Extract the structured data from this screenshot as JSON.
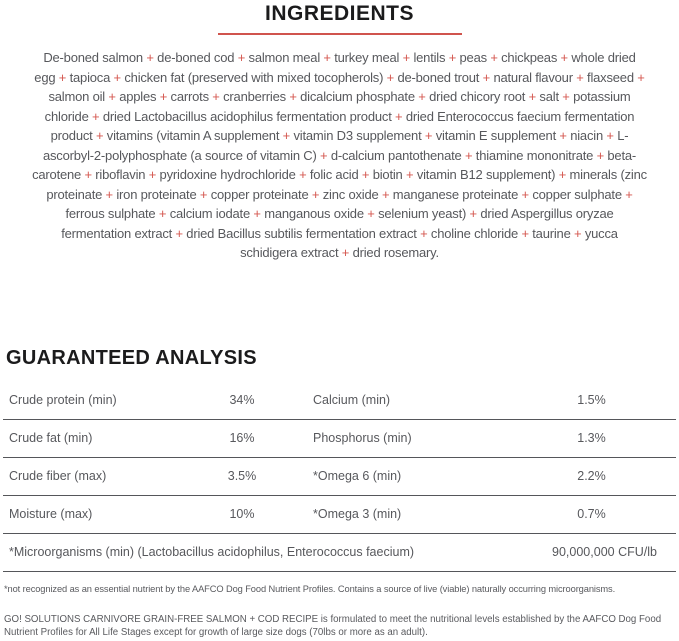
{
  "colors": {
    "accent_red": "#d4564e",
    "body_text": "#57585c",
    "heading_text": "#1b1b1c",
    "table_rule": "#55565a"
  },
  "ingredients": {
    "title": "INGREDIENTS",
    "separator": "+",
    "items": [
      "De-boned salmon",
      "de-boned cod",
      "salmon meal",
      "turkey meal",
      "lentils",
      "peas",
      "chickpeas",
      "whole dried egg",
      "tapioca",
      "chicken fat (preserved with mixed tocopherols)",
      "de-boned trout",
      "natural flavour",
      "flaxseed",
      "salmon oil",
      "apples",
      "carrots",
      "cranberries",
      "dicalcium phosphate",
      "dried chicory root",
      "salt",
      "potassium chloride",
      "dried Lactobacillus acidophilus fermentation product",
      "dried Enterococcus faecium fermentation product",
      "vitamins (vitamin A supplement",
      "vitamin D3 supplement",
      "vitamin E supplement",
      "niacin",
      "L-ascorbyl-2-polyphosphate (a source of vitamin C)",
      "d-calcium pantothenate",
      "thiamine mononitrate",
      "beta-carotene",
      "riboflavin",
      "pyridoxine hydrochloride",
      "folic acid",
      "biotin",
      "vitamin B12 supplement)",
      "minerals (zinc proteinate",
      "iron proteinate",
      "copper proteinate",
      "zinc oxide",
      "manganese proteinate",
      "copper sulphate",
      "ferrous sulphate",
      "calcium iodate",
      "manganous oxide",
      "selenium yeast)",
      "dried Aspergillus oryzae fermentation extract",
      "dried Bacillus subtilis fermentation extract",
      "choline chloride",
      "taurine",
      "yucca schidigera extract",
      "dried rosemary."
    ]
  },
  "guaranteed_analysis": {
    "title": "GUARANTEED ANALYSIS",
    "rows": [
      {
        "label1": "Crude protein (min)",
        "value1": "34%",
        "label2": "Calcium (min)",
        "value2": "1.5%"
      },
      {
        "label1": "Crude fat (min)",
        "value1": "16%",
        "label2": "Phosphorus (min)",
        "value2": "1.3%"
      },
      {
        "label1": "Crude fiber (max)",
        "value1": "3.5%",
        "label2": "*Omega 6 (min)",
        "value2": "2.2%"
      },
      {
        "label1": "Moisture (max)",
        "value1": "10%",
        "label2": "*Omega 3 (min)",
        "value2": "0.7%"
      }
    ],
    "full_row": {
      "label": "*Microorganisms (min) (Lactobacillus acidophilus, Enterococcus faecium)",
      "value": "90,000,000 CFU/lb"
    }
  },
  "footnotes": {
    "note1": "*not recognized as an essential nutrient by the AAFCO Dog Food Nutrient Profiles. Contains a source of live (viable) naturally occurring microorganisms.",
    "note2": "GO! SOLUTIONS CARNIVORE GRAIN-FREE SALMON + COD RECIPE is formulated to meet the nutritional levels established by the AAFCO Dog Food Nutrient Profiles for All Life Stages except for growth of large size dogs (70lbs or more as an adult)."
  }
}
